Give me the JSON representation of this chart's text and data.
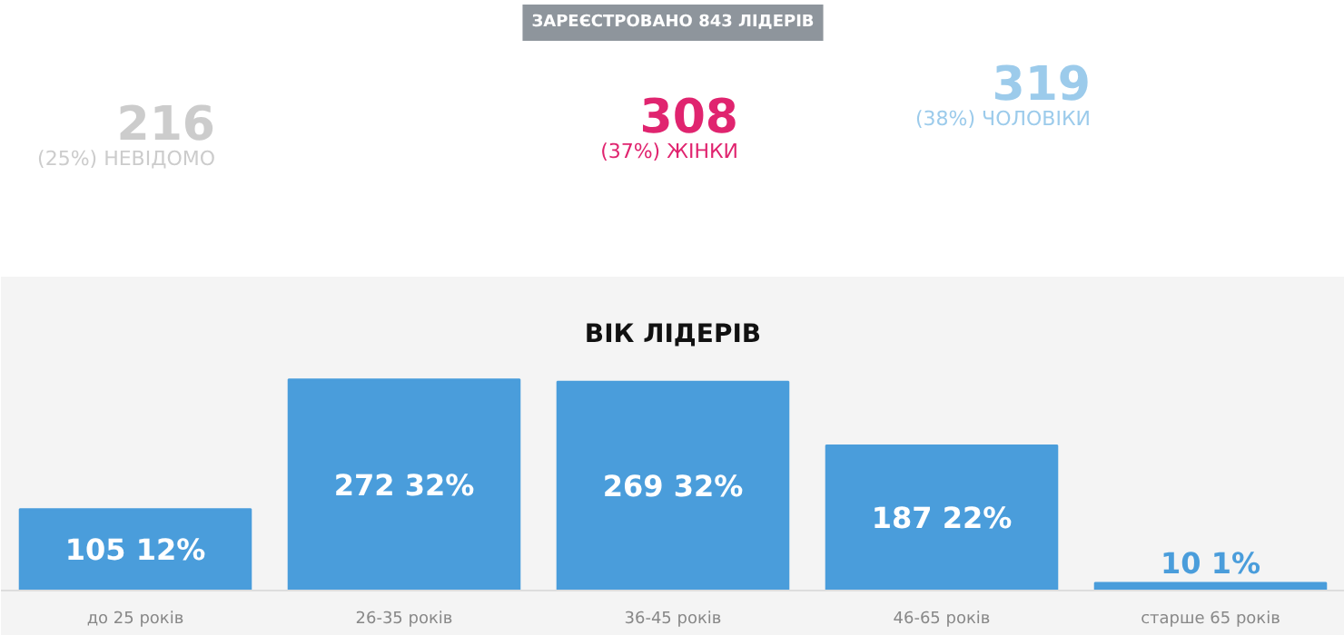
{
  "chart_data": [
    {
      "type": "other",
      "title": "ЗАРЕЄСТРОВАНО 843 ЛІДЕРІВ",
      "annotations": [
        "216",
        "(25%) НЕВІДОМО",
        "308",
        "(37%) ЖІНКИ",
        "319",
        "(38%) ЧОЛОВІКИ"
      ],
      "colors": [
        "#cccccc",
        "#e0246f",
        "#9ccbeb"
      ]
    },
    {
      "type": "bar",
      "title": "ВІК ЛІДЕРІВ",
      "categories": [
        "до 25 років",
        "26-35 років",
        "36-45 років",
        "46-65 років",
        "старше 65 років"
      ],
      "values": [
        105,
        272,
        269,
        187,
        10
      ],
      "color": "#4a9ddb",
      "data_labels": true,
      "value_labels": [
        "105 12%",
        "272 32%",
        "269 32%",
        "187 22%",
        "10 1%"
      ]
    }
  ]
}
